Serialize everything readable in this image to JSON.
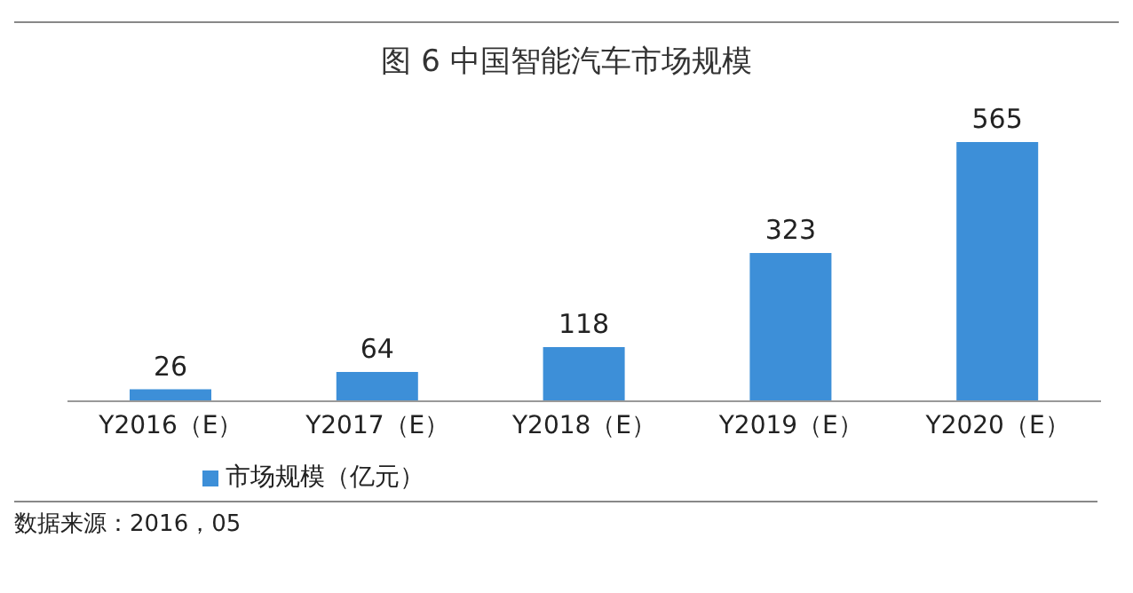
{
  "chart_data": {
    "type": "bar",
    "title": "图 6 中国智能汽车市场规模",
    "categories": [
      "Y2016（E）",
      "Y2017（E）",
      "Y2018（E）",
      "Y2019（E）",
      "Y2020（E）"
    ],
    "series": [
      {
        "name": "市场规模（亿元）",
        "color": "#3d8fd8",
        "values": [
          26,
          64,
          118,
          323,
          565
        ]
      }
    ],
    "data_labels": true,
    "legend": "bottom left",
    "annotations": [
      "数据来源：2016，05"
    ]
  }
}
